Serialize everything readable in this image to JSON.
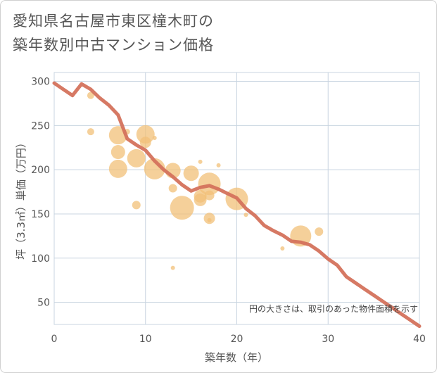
{
  "chart_title": "愛知県名古屋市東区橦木町の\n築年数別中古マンション価格",
  "chart_data": {
    "type": "scatter",
    "title": "愛知県名古屋市東区橦木町の築年数別中古マンション価格",
    "xlabel": "築年数（年）",
    "ylabel": "坪（3.3㎡）単価（万円）",
    "xlim": [
      0,
      40
    ],
    "ylim": [
      25,
      310
    ],
    "xticks": [
      0,
      10,
      20,
      30,
      40
    ],
    "yticks": [
      50,
      100,
      150,
      200,
      250,
      300
    ],
    "grid": true,
    "note": "円の大きさは、取引のあった物件面積を示す",
    "colors": {
      "bubble": "#f2c078",
      "line": "#d4725c",
      "grid": "#c8d4e0"
    },
    "series": [
      {
        "type": "bubble",
        "points": [
          {
            "x": 4,
            "y": 284,
            "r": 5
          },
          {
            "x": 4,
            "y": 243,
            "r": 5
          },
          {
            "x": 7,
            "y": 239,
            "r": 13
          },
          {
            "x": 7,
            "y": 220,
            "r": 10
          },
          {
            "x": 7,
            "y": 201,
            "r": 13
          },
          {
            "x": 8,
            "y": 243,
            "r": 4
          },
          {
            "x": 9,
            "y": 213,
            "r": 13
          },
          {
            "x": 9,
            "y": 160,
            "r": 6
          },
          {
            "x": 10,
            "y": 240,
            "r": 13
          },
          {
            "x": 10,
            "y": 231,
            "r": 8
          },
          {
            "x": 11,
            "y": 236,
            "r": 3
          },
          {
            "x": 11,
            "y": 201,
            "r": 15
          },
          {
            "x": 13,
            "y": 199,
            "r": 11
          },
          {
            "x": 13,
            "y": 179,
            "r": 6
          },
          {
            "x": 13,
            "y": 89,
            "r": 3
          },
          {
            "x": 14,
            "y": 157,
            "r": 17
          },
          {
            "x": 15,
            "y": 196,
            "r": 11
          },
          {
            "x": 16,
            "y": 209,
            "r": 3
          },
          {
            "x": 16,
            "y": 170,
            "r": 9
          },
          {
            "x": 16,
            "y": 166,
            "r": 9
          },
          {
            "x": 17,
            "y": 184,
            "r": 16
          },
          {
            "x": 17,
            "y": 171,
            "r": 7
          },
          {
            "x": 17,
            "y": 145,
            "r": 8
          },
          {
            "x": 17,
            "y": 143,
            "r": 3
          },
          {
            "x": 18,
            "y": 205,
            "r": 3
          },
          {
            "x": 20,
            "y": 167,
            "r": 16
          },
          {
            "x": 21,
            "y": 149,
            "r": 3
          },
          {
            "x": 25,
            "y": 111,
            "r": 3
          },
          {
            "x": 27,
            "y": 125,
            "r": 15
          },
          {
            "x": 29,
            "y": 130,
            "r": 6
          }
        ]
      },
      {
        "type": "line",
        "points": [
          {
            "x": 0,
            "y": 298
          },
          {
            "x": 1,
            "y": 291
          },
          {
            "x": 2,
            "y": 284
          },
          {
            "x": 3,
            "y": 297
          },
          {
            "x": 4,
            "y": 291
          },
          {
            "x": 5,
            "y": 281
          },
          {
            "x": 6,
            "y": 273
          },
          {
            "x": 7,
            "y": 262
          },
          {
            "x": 8,
            "y": 235
          },
          {
            "x": 9,
            "y": 228
          },
          {
            "x": 10,
            "y": 222
          },
          {
            "x": 11,
            "y": 210
          },
          {
            "x": 12,
            "y": 200
          },
          {
            "x": 13,
            "y": 192
          },
          {
            "x": 14,
            "y": 183
          },
          {
            "x": 15,
            "y": 176
          },
          {
            "x": 16,
            "y": 180
          },
          {
            "x": 17,
            "y": 182
          },
          {
            "x": 18,
            "y": 178
          },
          {
            "x": 19,
            "y": 173
          },
          {
            "x": 20,
            "y": 168
          },
          {
            "x": 21,
            "y": 156
          },
          {
            "x": 22,
            "y": 148
          },
          {
            "x": 23,
            "y": 137
          },
          {
            "x": 24,
            "y": 131
          },
          {
            "x": 25,
            "y": 126
          },
          {
            "x": 26,
            "y": 119
          },
          {
            "x": 27,
            "y": 118
          },
          {
            "x": 28,
            "y": 115
          },
          {
            "x": 29,
            "y": 108
          },
          {
            "x": 30,
            "y": 99
          },
          {
            "x": 31,
            "y": 92
          },
          {
            "x": 32,
            "y": 79
          },
          {
            "x": 33,
            "y": 72
          },
          {
            "x": 34,
            "y": 65
          },
          {
            "x": 35,
            "y": 58
          },
          {
            "x": 36,
            "y": 51
          },
          {
            "x": 37,
            "y": 44
          },
          {
            "x": 38,
            "y": 37
          },
          {
            "x": 39,
            "y": 30
          },
          {
            "x": 40,
            "y": 23
          }
        ]
      }
    ]
  }
}
